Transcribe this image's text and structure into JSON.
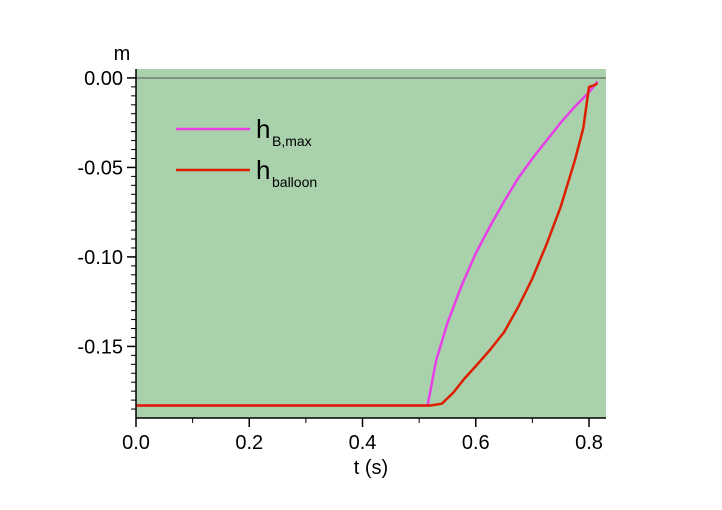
{
  "chart_data": {
    "type": "line",
    "title": "",
    "xlabel": "t (s)",
    "ylabel": "m",
    "xlim": [
      0.0,
      0.83
    ],
    "ylim": [
      -0.19,
      0.005
    ],
    "xticks": [
      0.0,
      0.2,
      0.4,
      0.6,
      0.8
    ],
    "xtick_labels": [
      "0.0",
      "0.2",
      "0.4",
      "0.6",
      "0.8"
    ],
    "yticks": [
      0.0,
      -0.05,
      -0.1,
      -0.15
    ],
    "ytick_labels": [
      "0.00",
      "-0.05",
      "-0.10",
      "-0.15"
    ],
    "grid": false,
    "zero_line": true,
    "background_color": "#a9d1ab",
    "legend_position": "top-left",
    "series": [
      {
        "name_main": "h",
        "name_sub": "B,max",
        "color": "#e83ee8",
        "x": [
          0.0,
          0.515,
          0.53,
          0.55,
          0.575,
          0.6,
          0.625,
          0.65,
          0.675,
          0.7,
          0.725,
          0.75,
          0.775,
          0.8,
          0.815
        ],
        "y": [
          -0.183,
          -0.183,
          -0.158,
          -0.137,
          -0.116,
          -0.098,
          -0.083,
          -0.069,
          -0.056,
          -0.045,
          -0.035,
          -0.025,
          -0.016,
          -0.008,
          -0.002
        ]
      },
      {
        "name_main": "h",
        "name_sub": "balloon",
        "color": "#dd1f00",
        "x": [
          0.0,
          0.52,
          0.54,
          0.56,
          0.58,
          0.6,
          0.625,
          0.65,
          0.675,
          0.7,
          0.725,
          0.75,
          0.775,
          0.79,
          0.8,
          0.81,
          0.815
        ],
        "y": [
          -0.183,
          -0.183,
          -0.182,
          -0.176,
          -0.168,
          -0.161,
          -0.152,
          -0.142,
          -0.128,
          -0.112,
          -0.093,
          -0.072,
          -0.046,
          -0.028,
          -0.005,
          -0.004,
          -0.003
        ]
      }
    ]
  }
}
